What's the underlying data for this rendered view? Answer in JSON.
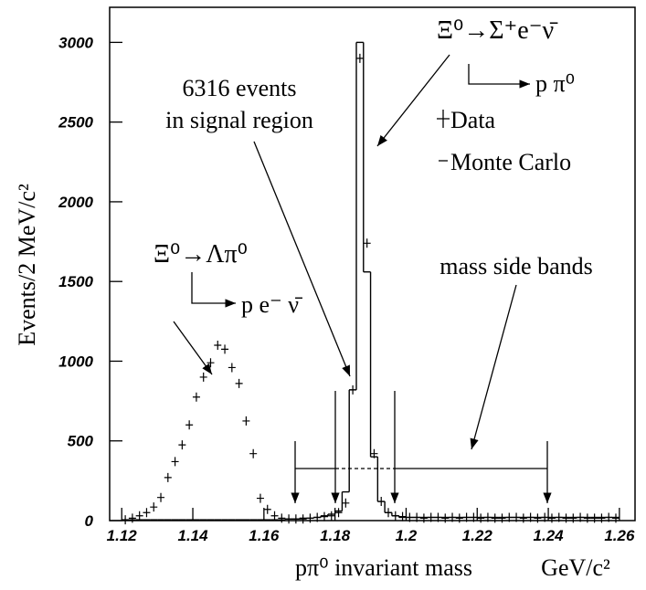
{
  "chart_data": {
    "type": "histogram",
    "xlabel": "pπ⁰  invariant mass",
    "xunit": "GeV/c²",
    "ylabel": "Events/2 MeV/c²",
    "xlim": [
      1.1166,
      1.2644
    ],
    "ylim": [
      0,
      3220
    ],
    "xticks": [
      1.12,
      1.14,
      1.16,
      1.18,
      1.2,
      1.22,
      1.24,
      1.26
    ],
    "yticks": [
      0,
      500,
      1000,
      1500,
      2000,
      2500,
      3000
    ],
    "bins": [
      1.12,
      1.122,
      1.124,
      1.126,
      1.128,
      1.13,
      1.132,
      1.134,
      1.136,
      1.138,
      1.14,
      1.142,
      1.144,
      1.146,
      1.148,
      1.15,
      1.152,
      1.154,
      1.156,
      1.158,
      1.16,
      1.162,
      1.164,
      1.166,
      1.168,
      1.17,
      1.172,
      1.174,
      1.176,
      1.178,
      1.18,
      1.182,
      1.184,
      1.186,
      1.188,
      1.19,
      1.192,
      1.194,
      1.196,
      1.198,
      1.2,
      1.202,
      1.204,
      1.206,
      1.208,
      1.21,
      1.212,
      1.214,
      1.216,
      1.218,
      1.22,
      1.222,
      1.224,
      1.226,
      1.228,
      1.23,
      1.232,
      1.234,
      1.236,
      1.238,
      1.24,
      1.242,
      1.244,
      1.246,
      1.248,
      1.25,
      1.252,
      1.254,
      1.256,
      1.258,
      1.26
    ],
    "series": [
      {
        "name": "Data",
        "style": "cross",
        "color": "#000000",
        "values": [
          5,
          15,
          30,
          50,
          85,
          145,
          270,
          370,
          475,
          600,
          775,
          900,
          990,
          1100,
          1075,
          960,
          860,
          625,
          420,
          140,
          70,
          30,
          15,
          10,
          10,
          10,
          15,
          20,
          25,
          30,
          50,
          110,
          820,
          2900,
          1740,
          420,
          120,
          50,
          30,
          25,
          20,
          20,
          15,
          20,
          20,
          15,
          20,
          15,
          20,
          20,
          15,
          20,
          15,
          15,
          20,
          20,
          15,
          20,
          15,
          20,
          15,
          20,
          15,
          15,
          20,
          15,
          15,
          15,
          20,
          15
        ]
      },
      {
        "name": "Monte Carlo",
        "style": "step",
        "color": "#000000",
        "values": [
          5,
          5,
          5,
          5,
          5,
          5,
          5,
          5,
          5,
          5,
          5,
          5,
          5,
          5,
          5,
          5,
          5,
          5,
          5,
          5,
          5,
          5,
          5,
          10,
          10,
          15,
          15,
          20,
          30,
          40,
          60,
          180,
          820,
          3000,
          1560,
          400,
          120,
          50,
          30,
          20,
          20,
          20,
          20,
          20,
          20,
          20,
          20,
          20,
          20,
          20,
          20,
          20,
          20,
          20,
          20,
          20,
          20,
          20,
          20,
          20,
          20,
          20,
          20,
          20,
          20,
          20,
          20,
          20,
          20,
          20
        ]
      }
    ],
    "annotations": [
      "Ξ⁰→Σ⁺e⁻ν̄",
      "p π⁰",
      "6316 events",
      "in signal region",
      "Ξ⁰→Λπ⁰",
      "p e⁻ ν̄",
      "mass side bands"
    ]
  }
}
